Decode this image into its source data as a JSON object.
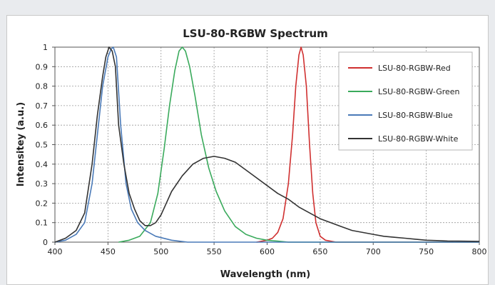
{
  "chart_data": {
    "type": "line",
    "title": "LSU-80-RGBW Spectrum",
    "xlabel": "Wavelength (nm)",
    "ylabel": "Intensitey (a.u.)",
    "xlim": [
      400,
      800
    ],
    "ylim": [
      0,
      1
    ],
    "x_ticks": [
      "400",
      "450",
      "500",
      "550",
      "600",
      "650",
      "700",
      "750",
      "800"
    ],
    "y_ticks": [
      "0",
      "0.1",
      "0.2",
      "0.3",
      "0.4",
      "0.5",
      "0.6",
      "0.7",
      "0.8",
      "0.9",
      "1"
    ],
    "grid": true,
    "legend_position": "top-right",
    "series": [
      {
        "name": "LSU-80-RGBW-Red",
        "color": "#d03030",
        "points": [
          [
            590,
            0
          ],
          [
            600,
            0.01
          ],
          [
            605,
            0.02
          ],
          [
            610,
            0.05
          ],
          [
            615,
            0.12
          ],
          [
            620,
            0.3
          ],
          [
            624,
            0.55
          ],
          [
            627,
            0.8
          ],
          [
            630,
            0.96
          ],
          [
            632,
            1.0
          ],
          [
            634,
            0.96
          ],
          [
            637,
            0.8
          ],
          [
            640,
            0.5
          ],
          [
            643,
            0.25
          ],
          [
            646,
            0.1
          ],
          [
            650,
            0.03
          ],
          [
            655,
            0.01
          ],
          [
            665,
            0
          ],
          [
            800,
            0
          ]
        ]
      },
      {
        "name": "LSU-80-RGBW-Green",
        "color": "#3aaa5c",
        "points": [
          [
            460,
            0
          ],
          [
            470,
            0.01
          ],
          [
            480,
            0.03
          ],
          [
            490,
            0.1
          ],
          [
            497,
            0.25
          ],
          [
            503,
            0.48
          ],
          [
            508,
            0.7
          ],
          [
            513,
            0.88
          ],
          [
            517,
            0.98
          ],
          [
            520,
            1.0
          ],
          [
            523,
            0.98
          ],
          [
            527,
            0.9
          ],
          [
            532,
            0.75
          ],
          [
            538,
            0.55
          ],
          [
            545,
            0.38
          ],
          [
            552,
            0.26
          ],
          [
            560,
            0.16
          ],
          [
            570,
            0.08
          ],
          [
            580,
            0.04
          ],
          [
            590,
            0.02
          ],
          [
            600,
            0.01
          ],
          [
            610,
            0.005
          ],
          [
            620,
            0
          ],
          [
            800,
            0
          ]
        ]
      },
      {
        "name": "LSU-80-RGBW-Blue",
        "color": "#4a7ab8",
        "points": [
          [
            400,
            0
          ],
          [
            410,
            0.01
          ],
          [
            420,
            0.04
          ],
          [
            428,
            0.1
          ],
          [
            435,
            0.3
          ],
          [
            440,
            0.55
          ],
          [
            445,
            0.8
          ],
          [
            450,
            0.95
          ],
          [
            453,
            0.99
          ],
          [
            455,
            1.0
          ],
          [
            458,
            0.95
          ],
          [
            462,
            0.6
          ],
          [
            467,
            0.3
          ],
          [
            472,
            0.17
          ],
          [
            478,
            0.1
          ],
          [
            485,
            0.06
          ],
          [
            495,
            0.03
          ],
          [
            510,
            0.01
          ],
          [
            525,
            0
          ],
          [
            800,
            0
          ]
        ]
      },
      {
        "name": "LSU-80-RGBW-White",
        "color": "#333333",
        "points": [
          [
            400,
            0
          ],
          [
            410,
            0.02
          ],
          [
            420,
            0.06
          ],
          [
            428,
            0.15
          ],
          [
            435,
            0.4
          ],
          [
            440,
            0.65
          ],
          [
            445,
            0.85
          ],
          [
            448,
            0.95
          ],
          [
            451,
            1.0
          ],
          [
            454,
            0.98
          ],
          [
            457,
            0.9
          ],
          [
            460,
            0.6
          ],
          [
            465,
            0.4
          ],
          [
            470,
            0.25
          ],
          [
            475,
            0.17
          ],
          [
            480,
            0.11
          ],
          [
            485,
            0.085
          ],
          [
            490,
            0.085
          ],
          [
            495,
            0.1
          ],
          [
            500,
            0.14
          ],
          [
            505,
            0.2
          ],
          [
            510,
            0.26
          ],
          [
            520,
            0.34
          ],
          [
            530,
            0.4
          ],
          [
            540,
            0.43
          ],
          [
            550,
            0.44
          ],
          [
            560,
            0.43
          ],
          [
            570,
            0.41
          ],
          [
            580,
            0.37
          ],
          [
            590,
            0.33
          ],
          [
            600,
            0.29
          ],
          [
            610,
            0.25
          ],
          [
            620,
            0.22
          ],
          [
            630,
            0.18
          ],
          [
            640,
            0.15
          ],
          [
            650,
            0.12
          ],
          [
            660,
            0.1
          ],
          [
            670,
            0.08
          ],
          [
            680,
            0.06
          ],
          [
            690,
            0.05
          ],
          [
            700,
            0.04
          ],
          [
            710,
            0.03
          ],
          [
            720,
            0.025
          ],
          [
            730,
            0.02
          ],
          [
            740,
            0.015
          ],
          [
            750,
            0.01
          ],
          [
            760,
            0.008
          ],
          [
            770,
            0.006
          ],
          [
            780,
            0.005
          ],
          [
            800,
            0.004
          ]
        ]
      }
    ]
  }
}
